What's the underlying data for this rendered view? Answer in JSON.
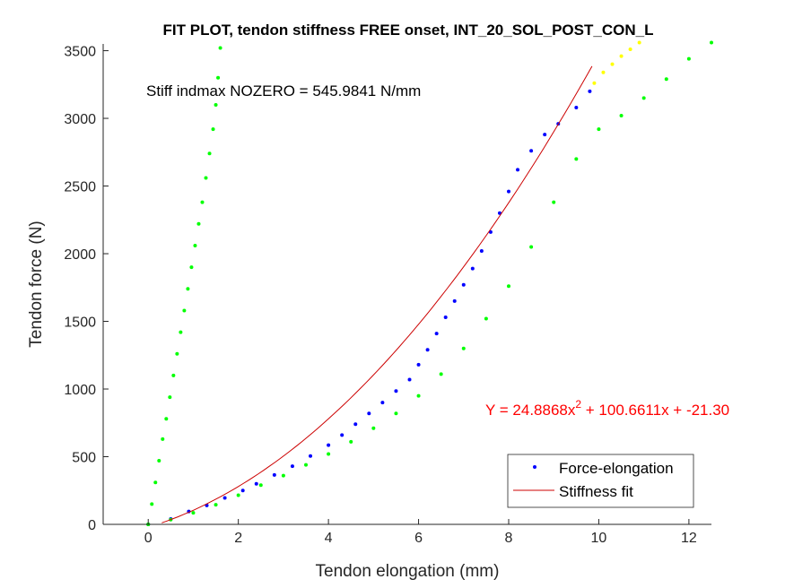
{
  "chart_data": {
    "type": "scatter",
    "title": "FIT PLOT, tendon stiffness FREE onset, INT_20_SOL_POST_CON_L",
    "xlabel": "Tendon elongation (mm)",
    "ylabel": "Tendon force (N)",
    "xlim": [
      -1,
      12.5
    ],
    "ylim": [
      0,
      3550
    ],
    "xticks": [
      0,
      2,
      4,
      6,
      8,
      10,
      12
    ],
    "yticks": [
      0,
      500,
      1000,
      1500,
      2000,
      2500,
      3000,
      3500
    ],
    "grid": false,
    "legend_position": "bottom-right",
    "annotations": {
      "stiffness": "Stiff indmax NOZERO = 545.9841 N/mm",
      "equation_prefix": "Y = 24.8868x",
      "equation_exponent": "2",
      "equation_suffix": " + 100.6611x + -21.30"
    },
    "fit": {
      "a": 24.8868,
      "b": 100.6611,
      "c": -21.3,
      "x_range": [
        0.3,
        9.85
      ],
      "color": "#cc0000"
    },
    "series": [
      {
        "name": "Force-elongation",
        "marker": "dot",
        "color": "#0000ff",
        "points": [
          [
            0.0,
            0
          ],
          [
            0.5,
            40
          ],
          [
            0.9,
            95
          ],
          [
            1.3,
            140
          ],
          [
            1.7,
            195
          ],
          [
            2.1,
            250
          ],
          [
            2.4,
            300
          ],
          [
            2.8,
            365
          ],
          [
            3.2,
            430
          ],
          [
            3.6,
            505
          ],
          [
            4.0,
            585
          ],
          [
            4.3,
            660
          ],
          [
            4.6,
            740
          ],
          [
            4.9,
            820
          ],
          [
            5.2,
            900
          ],
          [
            5.5,
            985
          ],
          [
            5.8,
            1070
          ],
          [
            6.0,
            1180
          ],
          [
            6.2,
            1290
          ],
          [
            6.4,
            1410
          ],
          [
            6.6,
            1530
          ],
          [
            6.8,
            1650
          ],
          [
            7.0,
            1770
          ],
          [
            7.2,
            1890
          ],
          [
            7.4,
            2020
          ],
          [
            7.6,
            2160
          ],
          [
            7.8,
            2300
          ],
          [
            8.0,
            2460
          ],
          [
            8.2,
            2620
          ],
          [
            8.5,
            2760
          ],
          [
            8.8,
            2880
          ],
          [
            9.1,
            2960
          ],
          [
            9.5,
            3080
          ],
          [
            9.8,
            3200
          ]
        ]
      },
      {
        "name": "",
        "marker": "dot",
        "color": "#ffff00",
        "points": [
          [
            9.9,
            3260
          ],
          [
            10.1,
            3340
          ],
          [
            10.3,
            3400
          ],
          [
            10.5,
            3460
          ],
          [
            10.7,
            3510
          ],
          [
            10.9,
            3560
          ]
        ]
      },
      {
        "name": "",
        "marker": "dot",
        "color": "#00ff00",
        "points": [
          [
            0.0,
            0
          ],
          [
            0.08,
            150
          ],
          [
            0.16,
            310
          ],
          [
            0.24,
            470
          ],
          [
            0.32,
            630
          ],
          [
            0.4,
            780
          ],
          [
            0.48,
            940
          ],
          [
            0.56,
            1100
          ],
          [
            0.64,
            1260
          ],
          [
            0.72,
            1420
          ],
          [
            0.8,
            1580
          ],
          [
            0.88,
            1740
          ],
          [
            0.96,
            1900
          ],
          [
            1.04,
            2060
          ],
          [
            1.12,
            2220
          ],
          [
            1.2,
            2380
          ],
          [
            1.28,
            2560
          ],
          [
            1.36,
            2740
          ],
          [
            1.44,
            2920
          ],
          [
            1.5,
            3100
          ],
          [
            1.55,
            3300
          ],
          [
            1.6,
            3520
          ]
        ]
      },
      {
        "name": "",
        "marker": "dot",
        "color": "#00ff00",
        "points": [
          [
            0.0,
            0
          ],
          [
            0.5,
            35
          ],
          [
            1.0,
            85
          ],
          [
            1.5,
            145
          ],
          [
            2.0,
            215
          ],
          [
            2.5,
            290
          ],
          [
            3.0,
            360
          ],
          [
            3.5,
            440
          ],
          [
            4.0,
            520
          ],
          [
            4.5,
            610
          ],
          [
            5.0,
            710
          ],
          [
            5.5,
            820
          ],
          [
            6.0,
            950
          ],
          [
            6.5,
            1110
          ],
          [
            7.0,
            1300
          ],
          [
            7.5,
            1520
          ],
          [
            8.0,
            1760
          ],
          [
            8.5,
            2050
          ],
          [
            9.0,
            2380
          ],
          [
            9.5,
            2700
          ],
          [
            10.0,
            2920
          ],
          [
            10.5,
            3020
          ],
          [
            11.0,
            3150
          ],
          [
            11.5,
            3290
          ],
          [
            12.0,
            3440
          ],
          [
            12.5,
            3560
          ]
        ]
      }
    ],
    "legend": [
      {
        "label": "Force-elongation",
        "symbol": "dot",
        "color": "#0000ff"
      },
      {
        "label": "Stiffness fit",
        "symbol": "line",
        "color": "#cc0000"
      }
    ]
  }
}
